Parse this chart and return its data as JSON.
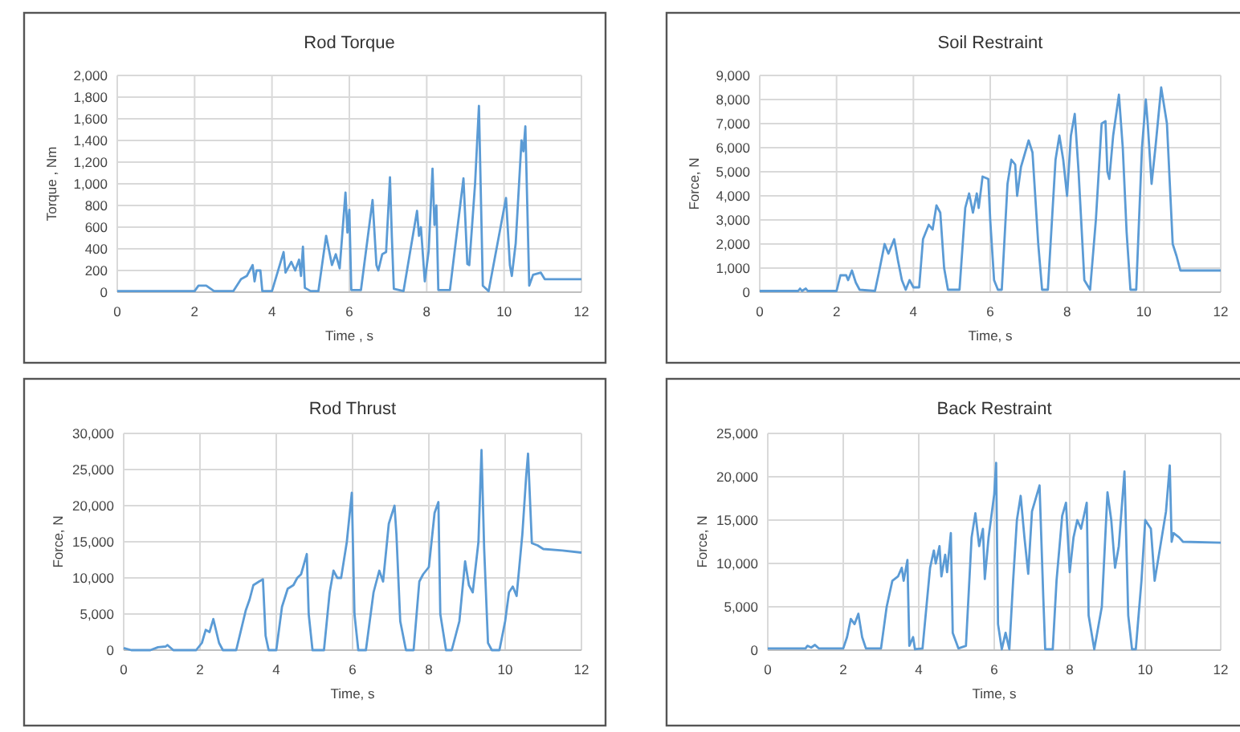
{
  "chart_data": [
    {
      "type": "line",
      "title": "Rod Torque",
      "xlabel": "Time , s",
      "ylabel": "Torque , Nm",
      "grid": true,
      "xlim": [
        0,
        12
      ],
      "xticks": [
        0,
        2,
        4,
        6,
        8,
        10,
        12
      ],
      "ylim": [
        0,
        2000
      ],
      "yticks": [
        0,
        200,
        400,
        600,
        800,
        {
          "value": 1000,
          "label": "1,000"
        },
        {
          "value": 1200,
          "label": "1,200"
        },
        {
          "value": 1400,
          "label": "1,400"
        },
        {
          "value": 1600,
          "label": "1,600"
        },
        {
          "value": 1800,
          "label": "1,800"
        },
        {
          "value": 2000,
          "label": "2,000"
        }
      ],
      "series": [
        {
          "color": "#5b9bd5",
          "x": [
            0,
            2,
            2.1,
            2.3,
            2.5,
            3.0,
            3.2,
            3.35,
            3.5,
            3.55,
            3.6,
            3.7,
            3.75,
            4.0,
            4.3,
            4.35,
            4.5,
            4.6,
            4.7,
            4.75,
            4.8,
            4.85,
            5.0,
            5.2,
            5.4,
            5.55,
            5.65,
            5.75,
            5.9,
            5.95,
            6.0,
            6.05,
            6.3,
            6.6,
            6.7,
            6.75,
            6.85,
            6.95,
            7.05,
            7.1,
            7.15,
            7.4,
            7.75,
            7.8,
            7.85,
            7.95,
            8.05,
            8.15,
            8.2,
            8.25,
            8.3,
            8.6,
            8.95,
            9.05,
            9.1,
            9.25,
            9.35,
            9.45,
            9.6,
            10.05,
            10.15,
            10.2,
            10.3,
            10.45,
            10.5,
            10.55,
            10.65,
            10.75,
            10.95,
            11.05,
            12
          ],
          "values": [
            10,
            10,
            60,
            60,
            10,
            10,
            120,
            150,
            250,
            100,
            200,
            200,
            10,
            10,
            370,
            180,
            280,
            200,
            300,
            150,
            420,
            40,
            10,
            10,
            520,
            250,
            350,
            220,
            920,
            550,
            760,
            20,
            20,
            850,
            250,
            200,
            350,
            370,
            1060,
            500,
            30,
            10,
            750,
            520,
            600,
            100,
            380,
            1140,
            620,
            800,
            20,
            20,
            1050,
            260,
            250,
            1000,
            1720,
            60,
            10,
            870,
            250,
            150,
            450,
            1400,
            1300,
            1530,
            60,
            160,
            180,
            120,
            120
          ]
        }
      ]
    },
    {
      "type": "line",
      "title": "Soil Restraint",
      "xlabel": "Time, s",
      "ylabel": "Force, N",
      "grid": true,
      "xlim": [
        0,
        12
      ],
      "xticks": [
        0,
        2,
        4,
        6,
        8,
        10,
        12
      ],
      "ylim": [
        0,
        9000
      ],
      "yticks": [
        0,
        {
          "value": 1000,
          "label": "1,000"
        },
        {
          "value": 2000,
          "label": "2,000"
        },
        {
          "value": 3000,
          "label": "3,000"
        },
        {
          "value": 4000,
          "label": "4,000"
        },
        {
          "value": 5000,
          "label": "5,000"
        },
        {
          "value": 6000,
          "label": "6,000"
        },
        {
          "value": 7000,
          "label": "7,000"
        },
        {
          "value": 8000,
          "label": "8,000"
        },
        {
          "value": 9000,
          "label": "9,000"
        }
      ],
      "series": [
        {
          "color": "#5b9bd5",
          "x": [
            0,
            1.0,
            1.05,
            1.1,
            1.2,
            1.25,
            2.0,
            2.1,
            2.25,
            2.3,
            2.4,
            2.5,
            2.6,
            3.0,
            3.1,
            3.25,
            3.35,
            3.5,
            3.6,
            3.7,
            3.8,
            3.9,
            4.0,
            4.15,
            4.25,
            4.4,
            4.5,
            4.6,
            4.7,
            4.8,
            4.9,
            5.2,
            5.35,
            5.45,
            5.55,
            5.65,
            5.7,
            5.8,
            5.95,
            6.0,
            6.1,
            6.2,
            6.3,
            6.45,
            6.55,
            6.65,
            6.7,
            6.8,
            7.0,
            7.1,
            7.25,
            7.35,
            7.5,
            7.7,
            7.8,
            7.9,
            8.0,
            8.1,
            8.2,
            8.3,
            8.45,
            8.6,
            8.75,
            8.9,
            9.0,
            9.05,
            9.1,
            9.2,
            9.35,
            9.45,
            9.55,
            9.65,
            9.8,
            9.95,
            10.05,
            10.1,
            10.2,
            10.3,
            10.45,
            10.6,
            10.75,
            10.85,
            10.95,
            11.2,
            12
          ],
          "values": [
            50,
            50,
            150,
            50,
            150,
            50,
            50,
            700,
            700,
            500,
            900,
            400,
            100,
            50,
            800,
            2000,
            1600,
            2200,
            1300,
            500,
            100,
            500,
            200,
            200,
            2200,
            2800,
            2600,
            3600,
            3300,
            1000,
            100,
            100,
            3500,
            4100,
            3300,
            4100,
            3500,
            4800,
            4700,
            3000,
            500,
            100,
            100,
            4500,
            5500,
            5300,
            4000,
            5200,
            6300,
            5800,
            2000,
            100,
            100,
            5500,
            6500,
            5500,
            4000,
            6500,
            7400,
            5000,
            500,
            100,
            3000,
            7000,
            7100,
            5000,
            4700,
            6500,
            8200,
            6000,
            2500,
            100,
            100,
            6000,
            8000,
            7000,
            4500,
            6000,
            8500,
            7000,
            2000,
            1500,
            900,
            900,
            900
          ]
        }
      ]
    },
    {
      "type": "line",
      "title": "Rod Thrust",
      "xlabel": "Time, s",
      "ylabel": "Force, N",
      "grid": true,
      "xlim": [
        0,
        12
      ],
      "xticks": [
        0,
        2,
        4,
        6,
        8,
        10,
        12
      ],
      "ylim": [
        0,
        30000
      ],
      "yticks": [
        0,
        {
          "value": 5000,
          "label": "5,000"
        },
        {
          "value": 10000,
          "label": "10,000"
        },
        {
          "value": 15000,
          "label": "15,000"
        },
        {
          "value": 20000,
          "label": "20,000"
        },
        {
          "value": 25000,
          "label": "25,000"
        },
        {
          "value": 30000,
          "label": "30,000"
        }
      ],
      "series": [
        {
          "color": "#5b9bd5",
          "x": [
            0,
            0.2,
            0.7,
            0.9,
            1.1,
            1.15,
            1.3,
            1.9,
            2.05,
            2.15,
            2.25,
            2.35,
            2.5,
            2.6,
            2.95,
            3.2,
            3.3,
            3.4,
            3.55,
            3.65,
            3.72,
            3.8,
            4.0,
            4.15,
            4.3,
            4.45,
            4.55,
            4.65,
            4.8,
            4.85,
            4.95,
            5.25,
            5.4,
            5.5,
            5.6,
            5.7,
            5.85,
            5.98,
            6.05,
            6.15,
            6.35,
            6.55,
            6.7,
            6.8,
            6.95,
            7.1,
            7.15,
            7.25,
            7.4,
            7.6,
            7.75,
            7.85,
            8.0,
            8.15,
            8.25,
            8.3,
            8.45,
            8.6,
            8.8,
            8.95,
            9.05,
            9.15,
            9.3,
            9.38,
            9.45,
            9.55,
            9.65,
            9.85,
            10.0,
            10.1,
            10.2,
            10.3,
            10.45,
            10.55,
            10.6,
            10.7,
            10.85,
            11.0,
            11.5,
            12
          ],
          "values": [
            300,
            0,
            0,
            400,
            500,
            700,
            0,
            0,
            1000,
            2800,
            2500,
            4300,
            1000,
            0,
            0,
            5500,
            7000,
            9000,
            9500,
            9800,
            2000,
            0,
            0,
            6000,
            8500,
            9000,
            10000,
            10500,
            13300,
            5000,
            0,
            0,
            8000,
            11000,
            10000,
            10000,
            15000,
            21800,
            5000,
            0,
            0,
            8000,
            11000,
            9500,
            17500,
            20000,
            16000,
            4000,
            0,
            0,
            9500,
            10500,
            11500,
            19000,
            20500,
            5000,
            0,
            0,
            4000,
            12300,
            9000,
            8000,
            15000,
            27700,
            14000,
            1000,
            0,
            0,
            4000,
            8000,
            8800,
            7500,
            16000,
            24000,
            27200,
            14800,
            14500,
            14000,
            13800,
            13500
          ]
        }
      ]
    },
    {
      "type": "line",
      "title": "Back Restraint",
      "xlabel": "Time, s",
      "ylabel": "Force, N",
      "grid": true,
      "xlim": [
        0,
        12
      ],
      "xticks": [
        0,
        2,
        4,
        6,
        8,
        10,
        12
      ],
      "ylim": [
        0,
        25000
      ],
      "yticks": [
        0,
        {
          "value": 5000,
          "label": "5,000"
        },
        {
          "value": 10000,
          "label": "10,000"
        },
        {
          "value": 15000,
          "label": "15,000"
        },
        {
          "value": 20000,
          "label": "20,000"
        },
        {
          "value": 25000,
          "label": "25,000"
        }
      ],
      "series": [
        {
          "color": "#5b9bd5",
          "x": [
            0,
            1.0,
            1.05,
            1.15,
            1.25,
            1.35,
            2.0,
            2.1,
            2.2,
            2.3,
            2.4,
            2.5,
            2.6,
            3.0,
            3.15,
            3.3,
            3.45,
            3.55,
            3.6,
            3.7,
            3.75,
            3.85,
            3.9,
            4.1,
            4.3,
            4.4,
            4.45,
            4.55,
            4.6,
            4.7,
            4.75,
            4.85,
            4.9,
            5.05,
            5.25,
            5.4,
            5.5,
            5.6,
            5.7,
            5.75,
            5.85,
            6.0,
            6.05,
            6.1,
            6.2,
            6.3,
            6.4,
            6.5,
            6.6,
            6.7,
            6.8,
            6.9,
            7.0,
            7.2,
            7.3,
            7.35,
            7.55,
            7.65,
            7.8,
            7.9,
            8.0,
            8.1,
            8.2,
            8.3,
            8.4,
            8.45,
            8.5,
            8.65,
            8.85,
            9.0,
            9.1,
            9.2,
            9.3,
            9.45,
            9.55,
            9.65,
            9.75,
            9.9,
            10.0,
            10.15,
            10.25,
            10.4,
            10.55,
            10.65,
            10.7,
            10.75,
            10.9,
            11.0,
            12
          ],
          "values": [
            200,
            200,
            500,
            300,
            600,
            200,
            200,
            1500,
            3600,
            3000,
            4200,
            1500,
            200,
            200,
            5000,
            8000,
            8500,
            9500,
            8000,
            10400,
            500,
            1500,
            100,
            200,
            9500,
            11500,
            10000,
            12000,
            8500,
            11000,
            9000,
            13500,
            2000,
            200,
            500,
            13000,
            15800,
            12000,
            14000,
            8200,
            13000,
            18000,
            21600,
            3000,
            100,
            2000,
            100,
            8000,
            15000,
            17800,
            13000,
            8800,
            16000,
            19000,
            6000,
            100,
            100,
            8000,
            15500,
            17000,
            9000,
            13000,
            15000,
            14000,
            16000,
            17000,
            4000,
            100,
            5000,
            18200,
            15000,
            9500,
            12000,
            20600,
            4000,
            100,
            100,
            8000,
            15000,
            14000,
            8000,
            12000,
            16000,
            21300,
            12500,
            13500,
            13000,
            12500,
            12400
          ]
        }
      ]
    }
  ]
}
